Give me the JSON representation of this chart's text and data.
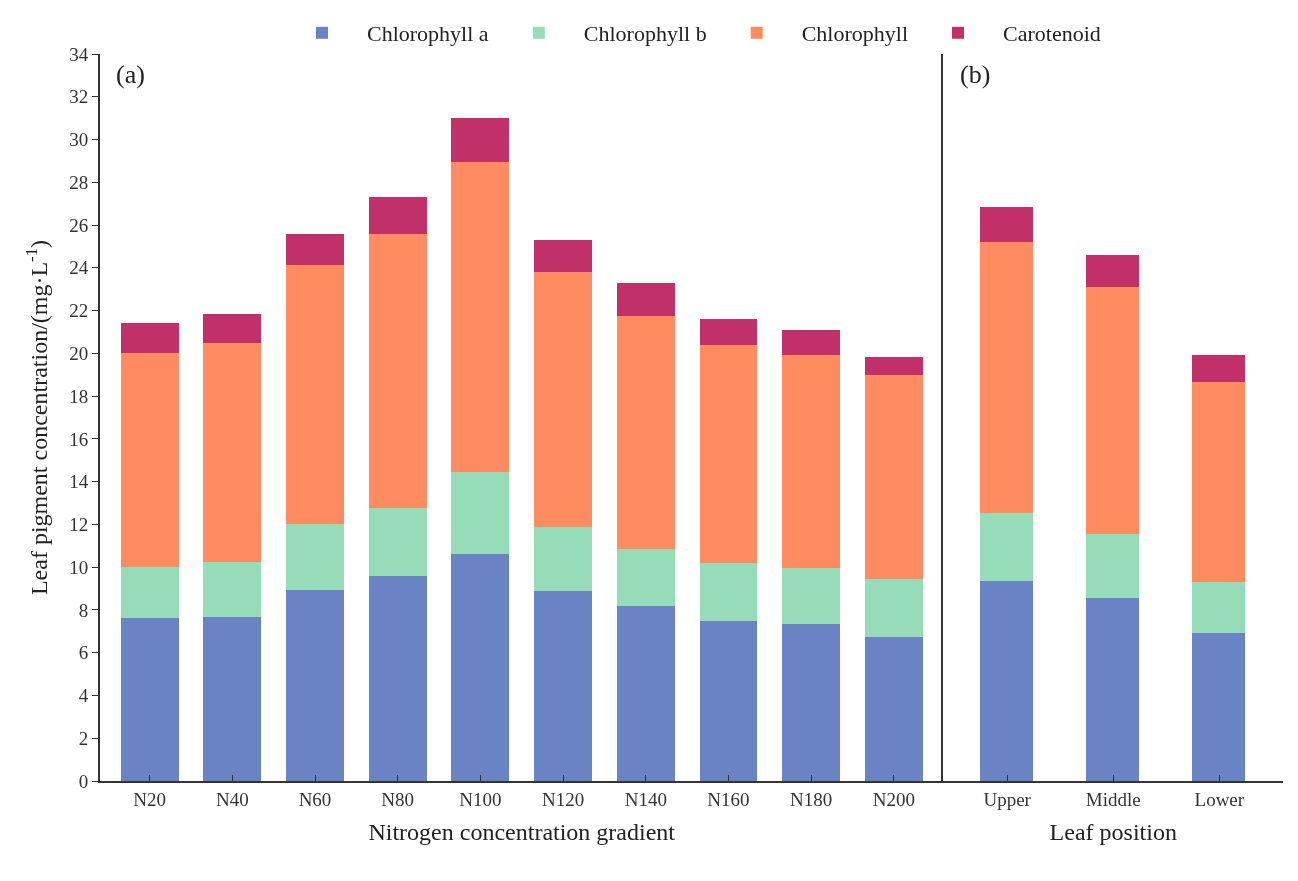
{
  "chart_data": [
    {
      "type": "bar",
      "stacked": true,
      "legend": "top",
      "ylabel": "Leaf pigment concentration/(mg·L$^{-1}$)",
      "xlabel": "Nitrogen concentration gradient",
      "annotations": [
        "(a)"
      ],
      "categories": [
        "N20",
        "N40",
        "N60",
        "N80",
        "N100",
        "N120",
        "N140",
        "N160",
        "N180",
        "N200"
      ],
      "ylim": [
        0,
        34
      ],
      "yticks": [
        0,
        2,
        4,
        6,
        8,
        10,
        12,
        14,
        16,
        18,
        20,
        22,
        24,
        26,
        28,
        30,
        32,
        34
      ],
      "series": [
        {
          "name": "Chlorophyll a",
          "color": "#6a83c4",
          "values": [
            7.6,
            7.65,
            8.95,
            9.6,
            10.6,
            8.9,
            8.2,
            7.5,
            7.35,
            6.75
          ]
        },
        {
          "name": "Chlorophyll b",
          "color": "#96dcb8",
          "values": [
            2.4,
            2.6,
            3.05,
            3.15,
            3.85,
            3.0,
            2.65,
            2.7,
            2.6,
            2.7
          ]
        },
        {
          "name": "Chlorophyll",
          "color": "#fe8c60",
          "values": [
            10.0,
            10.25,
            12.15,
            12.85,
            14.5,
            11.9,
            10.9,
            10.2,
            9.95,
            9.55
          ]
        },
        {
          "name": "Carotenoid",
          "color": "#c2306a",
          "values": [
            1.4,
            1.35,
            1.45,
            1.7,
            2.05,
            1.5,
            1.55,
            1.2,
            1.2,
            0.85
          ]
        }
      ]
    },
    {
      "type": "bar",
      "stacked": true,
      "xlabel": "Leaf position",
      "annotations": [
        "(b)"
      ],
      "tick_labels": "x",
      "categories": [
        "Upper",
        "Middle",
        "Lower"
      ],
      "ylim": [
        0,
        34
      ],
      "series": [
        {
          "color": "#6a83c4",
          "values": [
            9.35,
            8.55,
            6.9
          ]
        },
        {
          "color": "#96dcb8",
          "values": [
            3.2,
            3.0,
            2.4
          ]
        },
        {
          "color": "#fe8c60",
          "values": [
            12.65,
            11.55,
            9.35
          ]
        },
        {
          "color": "#c2306a",
          "values": [
            1.65,
            1.5,
            1.25
          ]
        }
      ]
    }
  ]
}
